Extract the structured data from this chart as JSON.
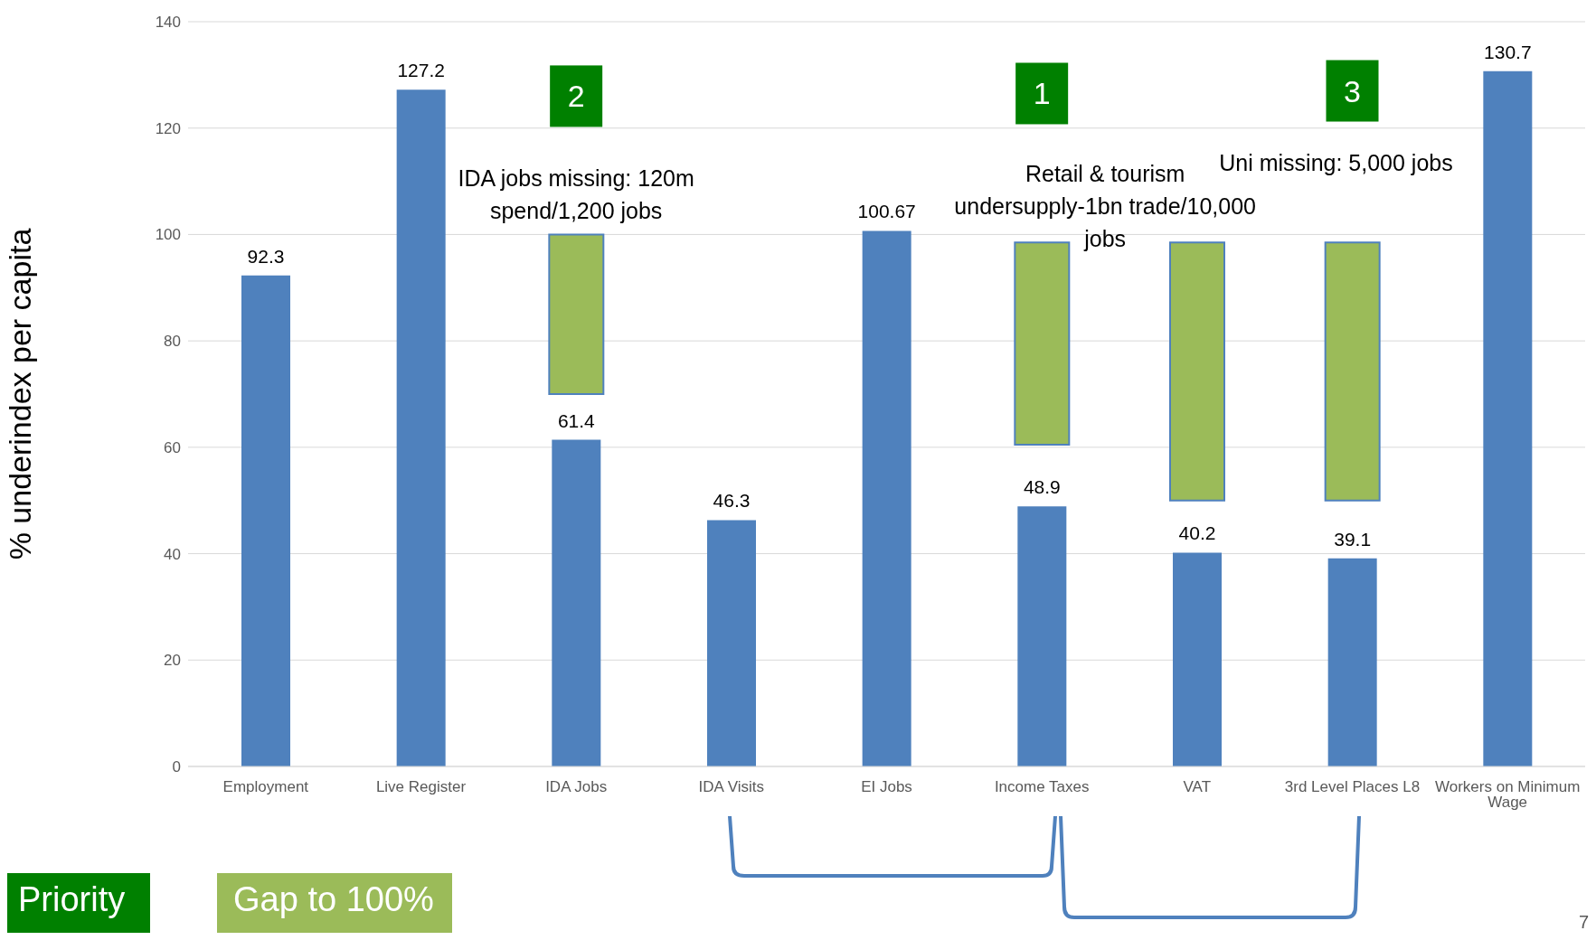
{
  "chart_data": {
    "type": "bar",
    "ylabel": "% underindex per capita",
    "categories": [
      "Employment",
      "Live Register",
      "IDA Jobs",
      "IDA Visits",
      "EI Jobs",
      "Income Taxes",
      "VAT",
      "3rd Level Places L8",
      "Workers on Minimum Wage"
    ],
    "series": [
      {
        "color": "#4f81bd",
        "values": [
          92.3,
          127.2,
          61.4,
          46.3,
          100.67,
          48.9,
          40.2,
          39.1,
          130.7
        ],
        "value_labels": [
          "92.3",
          "127.2",
          "61.4",
          "46.3",
          "100.67",
          "48.9",
          "40.2",
          "39.1",
          "130.7"
        ]
      },
      {
        "name": "Gap to 100%",
        "color": "#9bbb59",
        "values": [
          null,
          null,
          30,
          null,
          null,
          38,
          48.5,
          48.5,
          null
        ],
        "base": [
          null,
          null,
          70,
          null,
          null,
          60.5,
          50,
          50,
          null
        ]
      }
    ],
    "ylim": [
      0,
      140
    ],
    "yticks": [
      0,
      20,
      40,
      60,
      80,
      100,
      120,
      140
    ],
    "grid": "y",
    "legend": "bottom left",
    "annotations": [
      "2",
      "1",
      "3",
      "IDA jobs missing: 120m spend/1,200 jobs",
      "Retail & tourism undersupply-1bn trade/10,000 jobs",
      "Uni missing: 5,000 jobs",
      "Priority",
      "7"
    ]
  }
}
